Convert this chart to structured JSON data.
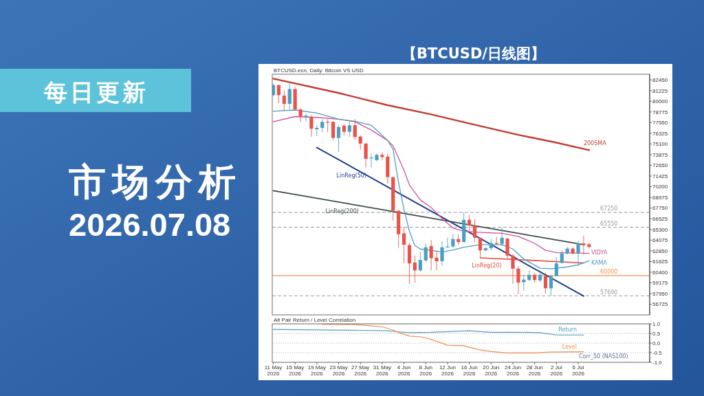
{
  "chart_data": [
    {
      "type": "candlestick",
      "title": "【BTCUSD/日线图】",
      "subtitle": "BTCUSD.ecn, Daily: Bitcoin VS USD",
      "annotations": [
        "每日更新",
        "市场分析",
        "2026.07.08"
      ],
      "x": [
        "2026-05-11",
        "2026-05-12",
        "2026-05-13",
        "2026-05-14",
        "2026-05-15",
        "2026-05-16",
        "2026-05-17",
        "2026-05-18",
        "2026-05-19",
        "2026-05-20",
        "2026-05-21",
        "2026-05-22",
        "2026-05-23",
        "2026-05-24",
        "2026-05-25",
        "2026-05-26",
        "2026-05-27",
        "2026-05-28",
        "2026-05-29",
        "2026-05-30",
        "2026-05-31",
        "2026-06-01",
        "2026-06-02",
        "2026-06-03",
        "2026-06-04",
        "2026-06-05",
        "2026-06-06",
        "2026-06-07",
        "2026-06-08",
        "2026-06-09",
        "2026-06-10",
        "2026-06-11",
        "2026-06-12",
        "2026-06-13",
        "2026-06-14",
        "2026-06-15",
        "2026-06-16",
        "2026-06-17",
        "2026-06-18",
        "2026-06-19",
        "2026-06-20",
        "2026-06-21",
        "2026-06-22",
        "2026-06-23",
        "2026-06-24",
        "2026-06-25",
        "2026-06-26",
        "2026-06-27",
        "2026-06-28",
        "2026-06-29",
        "2026-06-30",
        "2026-07-01",
        "2026-07-02",
        "2026-07-03",
        "2026-07-04",
        "2026-07-05",
        "2026-07-06",
        "2026-07-07",
        "2026-07-08"
      ],
      "ohlc": [
        [
          80700,
          82000,
          80600,
          81850
        ],
        [
          81850,
          81950,
          79800,
          80700
        ],
        [
          80650,
          81250,
          78900,
          79700
        ],
        [
          79700,
          82000,
          79050,
          81400
        ],
        [
          81400,
          81650,
          78900,
          79050
        ],
        [
          79050,
          79200,
          77650,
          78250
        ],
        [
          78150,
          78600,
          77650,
          78350
        ],
        [
          78150,
          78400,
          75950,
          76850
        ],
        [
          76800,
          77250,
          76000,
          76950
        ],
        [
          76950,
          77950,
          76450,
          77650
        ],
        [
          77650,
          77950,
          76450,
          77550
        ],
        [
          77650,
          77700,
          75550,
          75800
        ],
        [
          75800,
          77250,
          74200,
          77050
        ],
        [
          77200,
          77350,
          76100,
          76500
        ],
        [
          76500,
          77650,
          75950,
          77250
        ],
        [
          77250,
          77950,
          75550,
          75900
        ],
        [
          75950,
          76100,
          74450,
          75150
        ],
        [
          75150,
          75200,
          72400,
          73400
        ],
        [
          73450,
          74000,
          72400,
          73550
        ],
        [
          73250,
          74000,
          73100,
          73850
        ],
        [
          73850,
          74150,
          73250,
          73600
        ],
        [
          73650,
          74000,
          70550,
          71300
        ],
        [
          71300,
          71300,
          66300,
          67450
        ],
        [
          67450,
          67450,
          63200,
          64750
        ],
        [
          64850,
          65600,
          61400,
          63550
        ],
        [
          63500,
          63700,
          59050,
          61400
        ],
        [
          61500,
          62300,
          59200,
          60600
        ],
        [
          60600,
          62700,
          60450,
          61800
        ],
        [
          61750,
          63700,
          61550,
          63250
        ],
        [
          63400,
          64100,
          60600,
          62000
        ],
        [
          62050,
          62850,
          60600,
          61650
        ],
        [
          61650,
          63950,
          61100,
          63250
        ],
        [
          63250,
          64350,
          63200,
          63350
        ],
        [
          63350,
          64750,
          63200,
          64200
        ],
        [
          64200,
          64750,
          63550,
          63850
        ],
        [
          63850,
          67250,
          63850,
          66400
        ],
        [
          66400,
          66950,
          65100,
          65750
        ],
        [
          65750,
          66500,
          63850,
          64350
        ],
        [
          64350,
          64350,
          62000,
          62900
        ],
        [
          62900,
          63250,
          62800,
          63150
        ],
        [
          63150,
          64200,
          62900,
          63750
        ],
        [
          63750,
          64450,
          63550,
          63650
        ],
        [
          63650,
          65550,
          63400,
          64350
        ],
        [
          64250,
          64350,
          61900,
          62300
        ],
        [
          62300,
          62450,
          59050,
          60800
        ],
        [
          60800,
          61100,
          57900,
          59200
        ],
        [
          59250,
          60100,
          58300,
          59550
        ],
        [
          59500,
          60600,
          59400,
          60100
        ],
        [
          60100,
          60350,
          59200,
          59500
        ],
        [
          59450,
          60350,
          59200,
          60100
        ],
        [
          59950,
          60350,
          57950,
          58550
        ],
        [
          58550,
          60100,
          57690,
          59950
        ],
        [
          59950,
          62150,
          59950,
          61400
        ],
        [
          61450,
          62900,
          61400,
          62550
        ],
        [
          62550,
          63300,
          62400,
          63100
        ],
        [
          63100,
          63250,
          62400,
          62550
        ],
        [
          62550,
          64000,
          61100,
          63700
        ],
        [
          63700,
          64600,
          62400,
          63500
        ],
        [
          63600,
          63750,
          63100,
          63300
        ]
      ],
      "colors": [
        "#4a9fc2",
        "#e8534a",
        "#e8534a",
        "#4a9fc2",
        "#e8534a",
        "#e8534a",
        "#4a9fc2",
        "#e8534a",
        "#4a9fc2",
        "#4a9fc2",
        "#e8534a",
        "#e8534a",
        "#4a9fc2",
        "#e8534a",
        "#4a9fc2",
        "#e8534a",
        "#e8534a",
        "#e8534a",
        "#4a9fc2",
        "#4a9fc2",
        "#e8534a",
        "#e8534a",
        "#e8534a",
        "#e8534a",
        "#e8534a",
        "#e8534a",
        "#e8534a",
        "#4a9fc2",
        "#4a9fc2",
        "#e8534a",
        "#e8534a",
        "#4a9fc2",
        "#4a9fc2",
        "#4a9fc2",
        "#e8534a",
        "#4a9fc2",
        "#e8534a",
        "#e8534a",
        "#e8534a",
        "#4a9fc2",
        "#4a9fc2",
        "#e8534a",
        "#4a9fc2",
        "#e8534a",
        "#e8534a",
        "#e8534a",
        "#4a9fc2",
        "#4a9fc2",
        "#e8534a",
        "#4a9fc2",
        "#e8534a",
        "#4a9fc2",
        "#4a9fc2",
        "#4a9fc2",
        "#4a9fc2",
        "#e8534a",
        "#4a9fc2",
        "#e8534a",
        "#e8534a"
      ],
      "series": [
        {
          "type": "line",
          "name": "200SMA",
          "color": "#c43a30",
          "x": [
            "2026-05-11",
            "2026-05-23",
            "2026-06-01",
            "2026-06-09",
            "2026-06-16",
            "2026-06-25",
            "2026-07-02",
            "2026-07-08"
          ],
          "values": [
            82600,
            80950,
            79550,
            78500,
            77450,
            76150,
            75250,
            74400
          ]
        },
        {
          "type": "line",
          "name": "LinReg(50)",
          "color": "#1f3d8c",
          "x": [
            "2026-05-19",
            "2026-07-07"
          ],
          "values": [
            74700,
            57650
          ]
        },
        {
          "type": "line",
          "name": "LinReg(200)",
          "color": "#3b4a4a",
          "x": [
            "2026-05-11",
            "2026-07-07"
          ],
          "values": [
            69750,
            63550
          ]
        },
        {
          "type": "line",
          "name": "LinReg(20)",
          "color": "#e8473b",
          "x": [
            "2026-06-18",
            "2026-07-07"
          ],
          "values": [
            62050,
            61450
          ]
        },
        {
          "type": "line",
          "name": "VIDYA",
          "color": "#cf4f98",
          "x": [
            "2026-05-11",
            "2026-05-15",
            "2026-05-19",
            "2026-05-23",
            "2026-05-26",
            "2026-05-29",
            "2026-06-01",
            "2026-06-02",
            "2026-06-04",
            "2026-06-05",
            "2026-06-07",
            "2026-06-09",
            "2026-06-11",
            "2026-06-13",
            "2026-06-15",
            "2026-06-17",
            "2026-06-22",
            "2026-06-25",
            "2026-06-28",
            "2026-06-30",
            "2026-07-02",
            "2026-07-08"
          ],
          "values": [
            77650,
            78250,
            78150,
            77950,
            77650,
            76700,
            75500,
            74900,
            72100,
            70400,
            68700,
            67800,
            66550,
            65450,
            65100,
            65000,
            64850,
            64500,
            63700,
            62900,
            62650,
            62550
          ]
        },
        {
          "type": "line",
          "name": "KAMA",
          "color": "#4f9cc4",
          "x": [
            "2026-05-11",
            "2026-05-15",
            "2026-05-19",
            "2026-05-21",
            "2026-05-23",
            "2026-05-26",
            "2026-05-29",
            "2026-05-31",
            "2026-06-01",
            "2026-06-02",
            "2026-06-03",
            "2026-06-04",
            "2026-06-05",
            "2026-06-06",
            "2026-06-07",
            "2026-06-09",
            "2026-06-11",
            "2026-06-13",
            "2026-06-15",
            "2026-06-18",
            "2026-06-22",
            "2026-06-24",
            "2026-06-26",
            "2026-06-29",
            "2026-07-01",
            "2026-07-04",
            "2026-07-06",
            "2026-07-08"
          ],
          "values": [
            78850,
            79000,
            78650,
            78300,
            77950,
            77700,
            77250,
            76100,
            75500,
            74500,
            70700,
            67600,
            65100,
            63450,
            63050,
            62900,
            62700,
            62950,
            63250,
            63550,
            63550,
            63050,
            61900,
            60850,
            60800,
            61000,
            61250,
            61700
          ]
        }
      ],
      "xlim": [
        "2026-05-10T19:30",
        "2026-07-19T03:00"
      ],
      "ylim": [
        55500,
        83100
      ],
      "yticks": [
        82450,
        81225,
        80000,
        78775,
        77550,
        76325,
        75100,
        73875,
        72650,
        71425,
        70200,
        68975,
        67750,
        66525,
        65300,
        64075,
        62850,
        61625,
        60400,
        59175,
        57950,
        56725
      ],
      "tick_labels": "y",
      "ref_lines": [
        {
          "axis": "y",
          "value": 67250,
          "label": "67250",
          "color": "#9a9a9a",
          "line_style": "dashed"
        },
        {
          "axis": "y",
          "value": 65550,
          "label": "65550",
          "color": "#9a9a9a",
          "line_style": "dashed"
        },
        {
          "axis": "y",
          "value": 60000,
          "label": "60000",
          "color": "#f39250"
        },
        {
          "axis": "y",
          "value": 57690,
          "label": "57690",
          "color": "#9a9a9a",
          "line_style": "dashed"
        }
      ]
    },
    {
      "type": "line",
      "title": "Alt Pair Return / Level Correlation",
      "annotations": [
        "Corr_50 (NAS100)"
      ],
      "series": [
        {
          "name": "Return",
          "color": "#4f9cc4",
          "x": [
            "2026-05-11",
            "2026-05-27",
            "2026-06-01",
            "2026-06-03",
            "2026-06-05",
            "2026-06-09",
            "2026-06-16",
            "2026-06-20",
            "2026-06-25",
            "2026-06-29",
            "2026-07-02",
            "2026-07-07"
          ],
          "values": [
            0.71,
            0.66,
            0.64,
            0.58,
            0.54,
            0.56,
            0.64,
            0.56,
            0.56,
            0.54,
            0.42,
            0.42
          ]
        },
        {
          "name": "Level",
          "color": "#f28a4a",
          "x": [
            "2026-05-20",
            "2026-05-26",
            "2026-05-29",
            "2026-05-31",
            "2026-06-02",
            "2026-06-03",
            "2026-06-05",
            "2026-06-07",
            "2026-06-09",
            "2026-06-12",
            "2026-06-15",
            "2026-06-16",
            "2026-06-18",
            "2026-06-20",
            "2026-06-23",
            "2026-06-28",
            "2026-07-01",
            "2026-07-07"
          ],
          "values": [
            0.98,
            0.96,
            0.9,
            0.84,
            0.68,
            0.55,
            0.36,
            0.33,
            0.19,
            -0.11,
            -0.14,
            -0.22,
            -0.35,
            -0.44,
            -0.51,
            -0.51,
            -0.47,
            -0.45
          ]
        }
      ],
      "xlim": [
        "2026-05-10T19:30",
        "2026-07-19T03:00"
      ],
      "xticks": [
        {
          "value": "2026-05-11",
          "label": "11 May 2026"
        },
        {
          "value": "2026-05-15",
          "label": "15 May 2026"
        },
        {
          "value": "2026-05-19",
          "label": "19 May 2026"
        },
        {
          "value": "2026-05-23",
          "label": "23 May 2026"
        },
        {
          "value": "2026-05-27",
          "label": "27 May 2026"
        },
        {
          "value": "2026-05-31",
          "label": "31 May 2026"
        },
        {
          "value": "2026-06-04",
          "label": "4 Jun 2026"
        },
        {
          "value": "2026-06-08",
          "label": "8 Jun 2026"
        },
        {
          "value": "2026-06-12",
          "label": "12 Jun 2026"
        },
        {
          "value": "2026-06-16",
          "label": "16 Jun 2026"
        },
        {
          "value": "2026-06-20",
          "label": "20 Jun 2026"
        },
        {
          "value": "2026-06-24",
          "label": "24 Jun 2026"
        },
        {
          "value": "2026-06-28",
          "label": "28 Jun 2026"
        },
        {
          "value": "2026-07-02",
          "label": "2 Jul 2026"
        },
        {
          "value": "2026-07-06",
          "label": "6 Jul 2026"
        }
      ],
      "ylim": [
        -1,
        1
      ],
      "yticks": [
        {
          "value": 1,
          "label": "1.0"
        },
        0.5,
        {
          "value": 0,
          "label": "0.0"
        },
        -0.5,
        {
          "value": -1,
          "label": "-1.0"
        }
      ],
      "grid": "y"
    }
  ]
}
